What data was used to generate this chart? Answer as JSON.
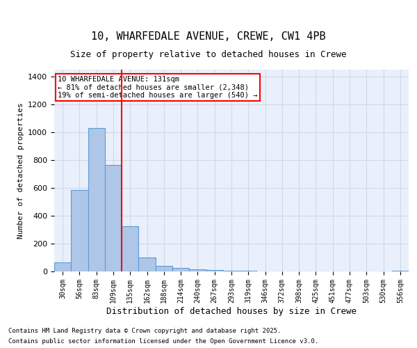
{
  "title1": "10, WHARFEDALE AVENUE, CREWE, CW1 4PB",
  "title2": "Size of property relative to detached houses in Crewe",
  "xlabel": "Distribution of detached houses by size in Crewe",
  "ylabel": "Number of detached properties",
  "bin_labels": [
    "30sqm",
    "56sqm",
    "83sqm",
    "109sqm",
    "135sqm",
    "162sqm",
    "188sqm",
    "214sqm",
    "240sqm",
    "267sqm",
    "293sqm",
    "319sqm",
    "346sqm",
    "372sqm",
    "398sqm",
    "425sqm",
    "451sqm",
    "477sqm",
    "503sqm",
    "530sqm",
    "556sqm"
  ],
  "bin_values": [
    65,
    585,
    1030,
    765,
    325,
    100,
    40,
    25,
    15,
    8,
    5,
    3,
    2,
    2,
    1,
    1,
    1,
    0,
    0,
    0,
    5
  ],
  "bar_color": "#aec6e8",
  "bar_edge_color": "#5b9bd5",
  "grid_color": "#d0d8e8",
  "background_color": "#eaf0fb",
  "red_line_x": 4.0,
  "red_line_label": "10 WHARFEDALE AVENUE: 131sqm",
  "annotation_line1": "10 WHARFEDALE AVENUE: 131sqm",
  "annotation_line2": "← 81% of detached houses are smaller (2,348)",
  "annotation_line3": "19% of semi-detached houses are larger (540) →",
  "annotation_box_color": "white",
  "annotation_box_edge": "red",
  "vline_color": "red",
  "ylim": [
    0,
    1450
  ],
  "footer1": "Contains HM Land Registry data © Crown copyright and database right 2025.",
  "footer2": "Contains public sector information licensed under the Open Government Licence v3.0."
}
